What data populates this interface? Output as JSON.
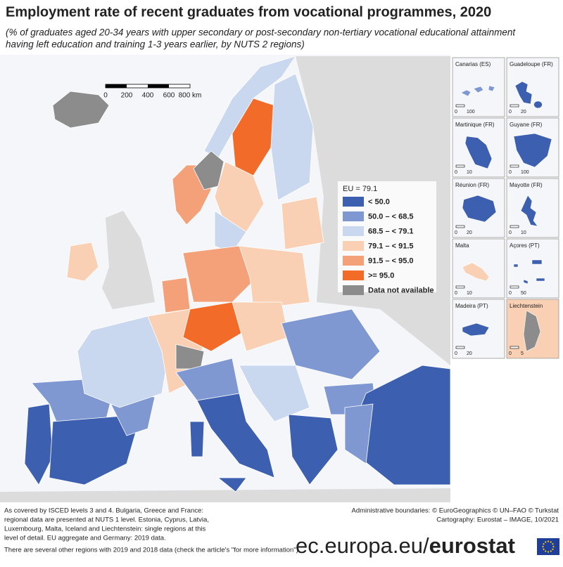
{
  "header": {
    "title": "Employment rate of recent graduates from vocational programmes, 2020",
    "subtitle": [
      "(% of graduates aged 20-34 years with upper secondary or post-secondary non-tertiary vocational educational attainment",
      "having left education and training 1-3 years earlier, by NUTS 2 regions)"
    ]
  },
  "scale_bar": [
    "0",
    "200",
    "400",
    "600",
    "800 km"
  ],
  "legend": {
    "title": "EU = 79.1",
    "items": [
      {
        "label": "< 50.0",
        "color": "#3d5fb0"
      },
      {
        "label": "50.0 – < 68.5",
        "color": "#7f98d2"
      },
      {
        "label": "68.5 – < 79.1",
        "color": "#c9d8ef"
      },
      {
        "label": "79.1 – < 91.5",
        "color": "#f9d0b4"
      },
      {
        "label": "91.5 – < 95.0",
        "color": "#f4a179"
      },
      {
        "label": ">= 95.0",
        "color": "#f26b29"
      },
      {
        "label": "Data not available",
        "color": "#8c8c8c"
      }
    ]
  },
  "insets": [
    {
      "name": "Canarias (ES)",
      "scale": [
        "0",
        "100"
      ]
    },
    {
      "name": "Guadeloupe (FR)",
      "scale": [
        "0",
        "20"
      ]
    },
    {
      "name": "Martinique (FR)",
      "scale": [
        "0",
        "10"
      ]
    },
    {
      "name": "Guyane (FR)",
      "scale": [
        "0",
        "100"
      ]
    },
    {
      "name": "Réunion (FR)",
      "scale": [
        "0",
        "20"
      ]
    },
    {
      "name": "Mayotte (FR)",
      "scale": [
        "0",
        "10"
      ]
    },
    {
      "name": "Malta",
      "scale": [
        "0",
        "10"
      ]
    },
    {
      "name": "Açores (PT)",
      "scale": [
        "0",
        "50"
      ]
    },
    {
      "name": "Madeira (PT)",
      "scale": [
        "0",
        "20"
      ]
    },
    {
      "name": "Liechtenstein",
      "scale": [
        "0",
        "5"
      ]
    }
  ],
  "footnotes": {
    "left": [
      "As covered by ISCED levels 3 and 4. Bulgaria, Greece and France:",
      "regional data are presented at NUTS 1 level. Estonia, Cyprus, Latvia,",
      "Luxembourg, Malta, Iceland and Liechtenstein: single regions at this",
      "level of detail. EU aggregate and Germany: 2019 data.",
      "There are several other regions with 2019 and 2018 data (check the article's \"for more information\")."
    ],
    "right": [
      "Administrative boundaries: © EuroGeographics © UN–FAO © Turkstat",
      "Cartography: Eurostat – IMAGE, 10/2021"
    ]
  },
  "logo": {
    "site": "ec.europa.eu/",
    "brand": "eurostat"
  }
}
